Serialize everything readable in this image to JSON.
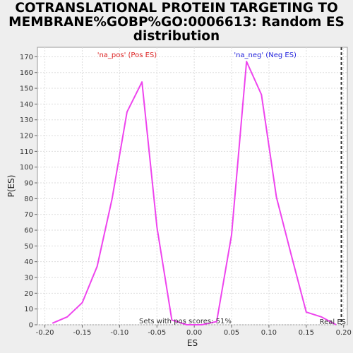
{
  "chart_data": {
    "type": "line",
    "title": [
      "COTRANSLATIONAL PROTEIN TARGETING TO",
      "MEMBRANE%GOBP%GO:0006613: Random ES",
      "distribution"
    ],
    "xlabel": "ES",
    "ylabel": "P(ES)",
    "xlim": [
      -0.21,
      0.205
    ],
    "ylim": [
      0,
      176
    ],
    "xticks": [
      -0.2,
      -0.15,
      -0.1,
      -0.05,
      0.0,
      0.05,
      0.1,
      0.15,
      0.2
    ],
    "xtick_labels": [
      "-0.20",
      "-0.15",
      "-0.10",
      "-0.05",
      "0.00",
      "0.05",
      "0.10",
      "0.15",
      "0.20"
    ],
    "yticks": [
      0,
      10,
      20,
      30,
      40,
      50,
      60,
      70,
      80,
      90,
      100,
      110,
      120,
      130,
      140,
      150,
      160,
      170
    ],
    "grid": true,
    "series": [
      {
        "color": "#ee44ee",
        "x": [
          -0.19,
          -0.17,
          -0.15,
          -0.13,
          -0.11,
          -0.09,
          -0.07,
          -0.05,
          -0.03,
          -0.01,
          0.01,
          0.03,
          0.05,
          0.07,
          0.09,
          0.11,
          0.13,
          0.15,
          0.17,
          0.19
        ],
        "y": [
          1,
          5,
          14,
          37,
          80,
          135,
          154,
          62,
          3,
          0,
          0,
          2,
          57,
          167,
          146,
          81,
          44,
          8,
          5,
          0
        ]
      }
    ],
    "real_es": 0.197,
    "annotations": {
      "pos_label": "'na_pos' (Pos ES)",
      "neg_label": "'na_neg' (Neg ES)",
      "sets_text": "Sets with pos scores: 51%",
      "real_es_label": "Real ES"
    },
    "colors": {
      "pos": "#dd2222",
      "neg": "#2222dd",
      "line": "#ee44ee",
      "real_es": "#333333"
    }
  }
}
